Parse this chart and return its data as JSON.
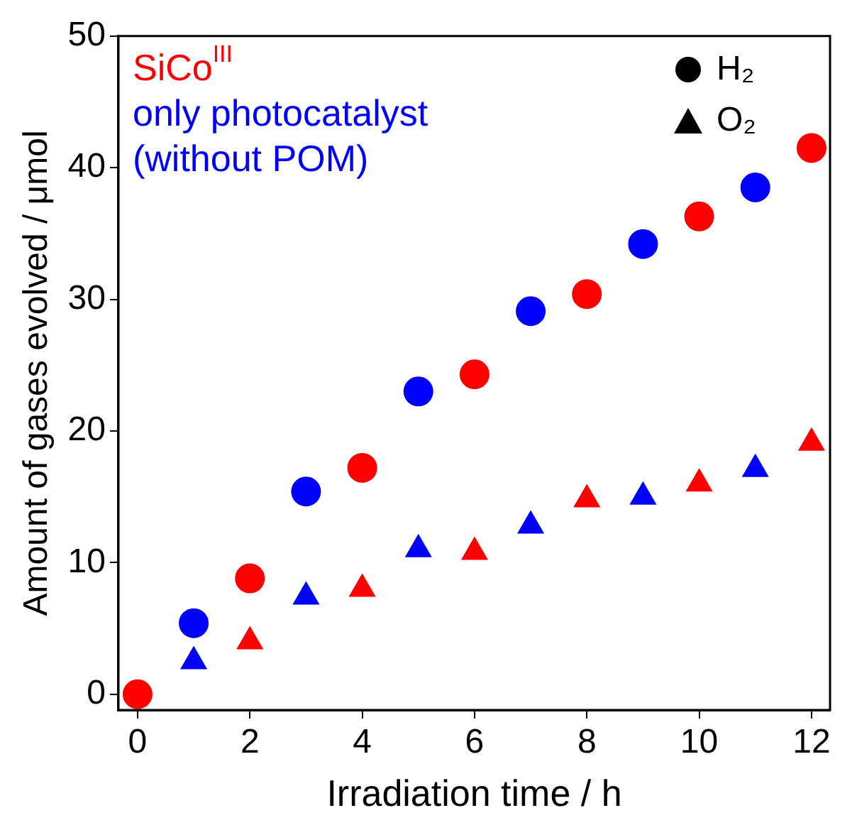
{
  "chart_data": {
    "type": "scatter",
    "xlabel": "Irradiation time / h",
    "ylabel": "Amount of gases evolved / μmol",
    "xlim": [
      -0.34,
      12.33
    ],
    "xticks": [
      0,
      2,
      4,
      6,
      8,
      10,
      12
    ],
    "ylim": [
      -1.2,
      50
    ],
    "yticks": [
      0,
      10,
      20,
      30,
      40,
      50
    ],
    "grid": false,
    "legend": "top left",
    "series": [
      {
        "name": "SiCo$^{III}$",
        "color": "#ff0000",
        "marker": "circle",
        "x": [
          0,
          2,
          4,
          6,
          8,
          10,
          12
        ],
        "values": [
          0,
          8.8,
          17.2,
          24.3,
          30.4,
          36.3,
          41.5
        ]
      },
      {
        "color": "#ff0000",
        "marker": "triangle",
        "x": [
          2,
          4,
          6,
          8,
          10,
          12
        ],
        "values": [
          4.0,
          8.0,
          10.8,
          14.8,
          16.0,
          19.1
        ]
      },
      {
        "name": "only photocatalyst\n(without POM)",
        "color": "#0000ff",
        "marker": "circle",
        "x": [
          1,
          3,
          5,
          7,
          9,
          11
        ],
        "values": [
          5.4,
          15.4,
          23.0,
          29.1,
          34.2,
          38.5
        ]
      },
      {
        "color": "#0000ff",
        "marker": "triangle",
        "x": [
          1,
          3,
          5,
          7,
          9,
          11
        ],
        "values": [
          2.5,
          7.4,
          11.0,
          12.8,
          15.0,
          17.1
        ]
      }
    ],
    "annotations": [
      "H₂",
      "O₂"
    ]
  }
}
